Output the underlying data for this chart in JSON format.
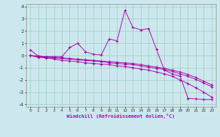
{
  "bg_color": "#cce8ee",
  "grid_color": "#99ccbb",
  "line_color": "#aa00aa",
  "xlim": [
    -0.5,
    23.5
  ],
  "ylim": [
    -4.2,
    4.2
  ],
  "xticks": [
    0,
    1,
    2,
    3,
    4,
    5,
    6,
    7,
    8,
    9,
    10,
    11,
    12,
    13,
    14,
    15,
    16,
    17,
    18,
    19,
    20,
    21,
    22,
    23
  ],
  "yticks": [
    -4,
    -3,
    -2,
    -1,
    0,
    1,
    2,
    3,
    4
  ],
  "xlabel": "Windchill (Refroidissement éolien,°C)",
  "series": [
    [
      0.45,
      -0.05,
      -0.1,
      -0.1,
      -0.1,
      0.65,
      1.0,
      0.3,
      0.1,
      0.05,
      1.35,
      1.2,
      3.7,
      2.3,
      2.1,
      2.2,
      0.5,
      -1.2,
      -1.5,
      -1.7,
      -3.5,
      -3.55,
      -3.6,
      -3.6
    ],
    [
      0.0,
      -0.05,
      -0.1,
      -0.15,
      -0.2,
      -0.25,
      -0.3,
      -0.35,
      -0.4,
      -0.45,
      -0.5,
      -0.55,
      -0.6,
      -0.65,
      -0.75,
      -0.85,
      -0.95,
      -1.05,
      -1.2,
      -1.35,
      -1.55,
      -1.8,
      -2.1,
      -2.4
    ],
    [
      0.0,
      -0.1,
      -0.15,
      -0.2,
      -0.25,
      -0.3,
      -0.35,
      -0.4,
      -0.45,
      -0.5,
      -0.6,
      -0.65,
      -0.7,
      -0.75,
      -0.85,
      -0.95,
      -1.05,
      -1.15,
      -1.3,
      -1.5,
      -1.7,
      -1.95,
      -2.25,
      -2.55
    ],
    [
      0.0,
      -0.15,
      -0.2,
      -0.3,
      -0.4,
      -0.45,
      -0.5,
      -0.6,
      -0.65,
      -0.7,
      -0.75,
      -0.85,
      -0.9,
      -1.0,
      -1.1,
      -1.2,
      -1.35,
      -1.5,
      -1.7,
      -2.0,
      -2.3,
      -2.65,
      -3.0,
      -3.4
    ]
  ]
}
